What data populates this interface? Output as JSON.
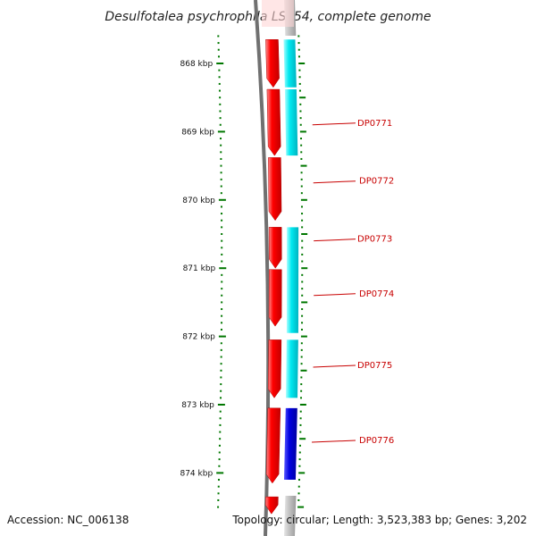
{
  "title": "Desulfotalea psychrophila LSv54, complete genome",
  "accession": "Accession: NC_006138",
  "topology": "Topology: circular; Length: 3,523,383 bp; Genes: 3,202",
  "colors": {
    "backbone": "#707070",
    "forward_cds": "#ff0000",
    "reverse_cds_light": "#00e8f0",
    "reverse_cds_dark": "#0000e0",
    "tick": "#007700",
    "label": "#c80000"
  },
  "chart_data": {
    "type": "genome-map",
    "axis_unit": "kbp",
    "ticks": [
      {
        "kbp": 868,
        "label": "868 kbp"
      },
      {
        "kbp": 869,
        "label": "869 kbp"
      },
      {
        "kbp": 870,
        "label": "870 kbp"
      },
      {
        "kbp": 871,
        "label": "871 kbp"
      },
      {
        "kbp": 872,
        "label": "872 kbp"
      },
      {
        "kbp": 873,
        "label": "873 kbp"
      },
      {
        "kbp": 874,
        "label": "874 kbp"
      }
    ],
    "forward_genes": [
      {
        "start": 867.65,
        "end": 868.35
      },
      {
        "start": 868.38,
        "end": 869.35
      },
      {
        "start": 869.38,
        "end": 870.3
      },
      {
        "start": 870.4,
        "end": 871.0
      },
      {
        "start": 871.02,
        "end": 871.85
      },
      {
        "start": 872.05,
        "end": 872.9
      },
      {
        "start": 873.05,
        "end": 874.15
      },
      {
        "start": 874.35,
        "end": 874.6
      }
    ],
    "reverse_genes": [
      {
        "start": 867.65,
        "end": 868.35,
        "color": "light"
      },
      {
        "start": 868.38,
        "end": 869.35,
        "color": "light"
      },
      {
        "start": 870.4,
        "end": 871.95,
        "color": "light"
      },
      {
        "start": 872.05,
        "end": 872.9,
        "color": "light"
      },
      {
        "start": 873.05,
        "end": 874.1,
        "color": "dark"
      }
    ],
    "gene_labels": [
      {
        "name": "DP0771",
        "kbp": 868.9
      },
      {
        "name": "DP0772",
        "kbp": 869.75
      },
      {
        "name": "DP0773",
        "kbp": 870.6
      },
      {
        "name": "DP0774",
        "kbp": 871.4
      },
      {
        "name": "DP0775",
        "kbp": 872.45
      },
      {
        "name": "DP0776",
        "kbp": 873.55
      }
    ]
  }
}
